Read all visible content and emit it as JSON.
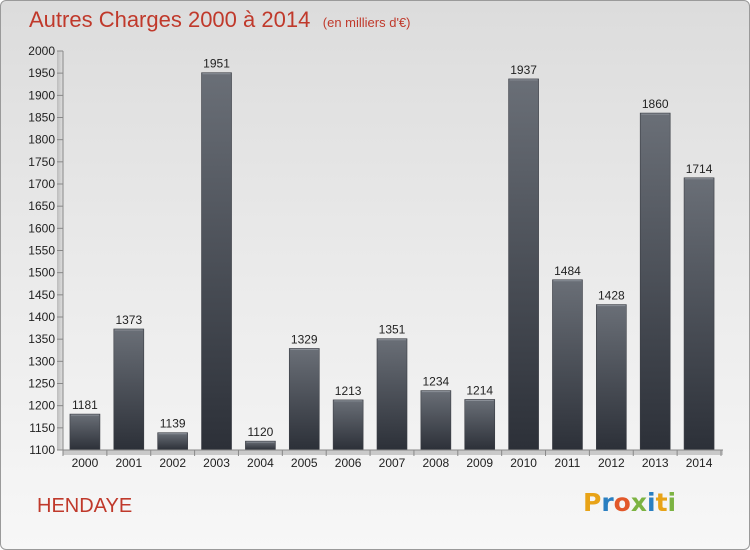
{
  "header": {
    "title": "Autres Charges 2000 à 2014",
    "subtitle": "(en milliers d'€)"
  },
  "footer": {
    "city": "HENDAYE",
    "logo": "Proxiti"
  },
  "colors": {
    "title": "#c0392b",
    "bar_top": "#6a6f77",
    "bar_bottom": "#2c3038"
  },
  "chart_data": {
    "type": "bar",
    "title": "Autres Charges 2000 à 2014",
    "subtitle": "(en milliers d'€)",
    "categories": [
      "2000",
      "2001",
      "2002",
      "2003",
      "2004",
      "2005",
      "2006",
      "2007",
      "2008",
      "2009",
      "2010",
      "2011",
      "2012",
      "2013",
      "2014"
    ],
    "values": [
      1181,
      1373,
      1139,
      1951,
      1120,
      1329,
      1213,
      1351,
      1234,
      1214,
      1937,
      1484,
      1428,
      1860,
      1714
    ],
    "ylim": [
      1100,
      2000
    ],
    "yticks": [
      1100,
      1150,
      1200,
      1250,
      1300,
      1350,
      1400,
      1450,
      1500,
      1550,
      1600,
      1650,
      1700,
      1750,
      1800,
      1850,
      1900,
      1950,
      2000
    ],
    "grid": false,
    "data_labels": true
  }
}
